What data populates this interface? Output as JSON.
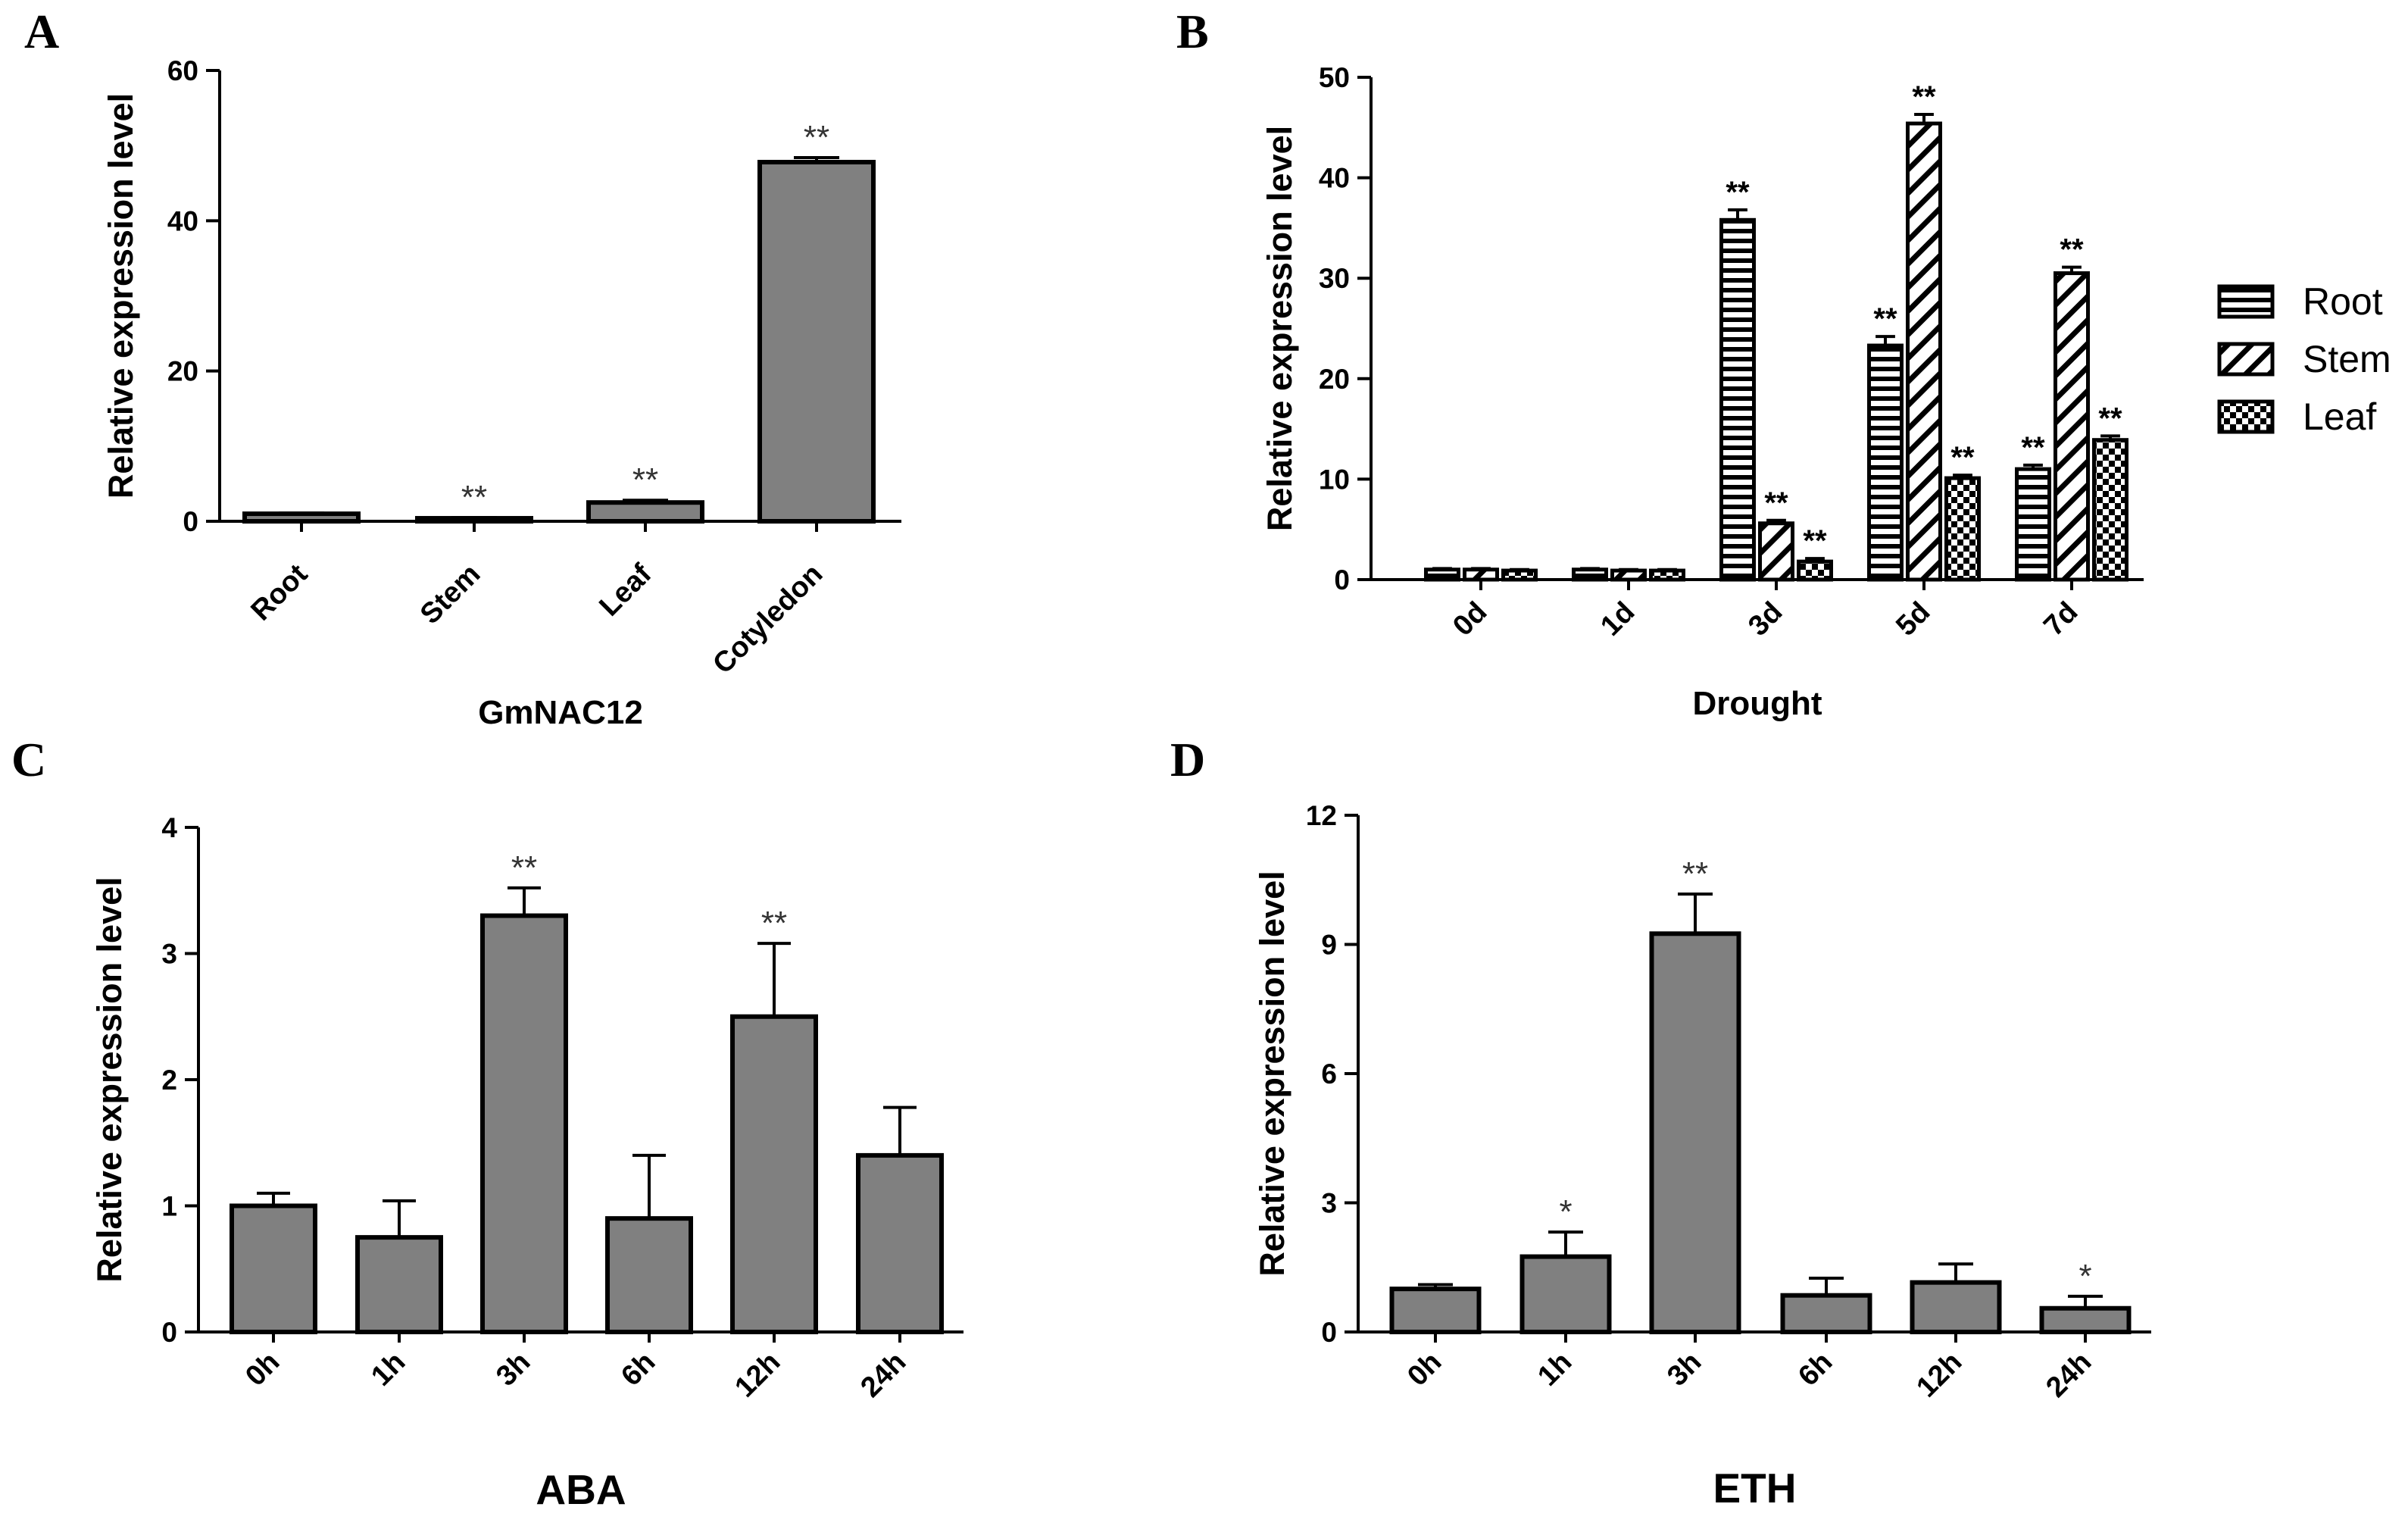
{
  "colors": {
    "bar_fill": "#808080",
    "stroke": "#000000",
    "sig_text": "#333333"
  },
  "chart_data": [
    {
      "id": "A",
      "panel_letter": "A",
      "type": "bar",
      "title": "",
      "categories": [
        "Root",
        "Stem",
        "Leaf",
        "Cotyledon"
      ],
      "values": [
        1.0,
        0.4,
        2.5,
        47.8
      ],
      "errors": [
        0.1,
        0.1,
        0.3,
        0.6
      ],
      "significance": [
        "",
        "**",
        "**",
        "**"
      ],
      "xlabel": "GmNAC12",
      "ylabel": "Relative expression level",
      "ylim": [
        0,
        60
      ],
      "yticks": [
        0,
        20,
        40,
        60
      ],
      "fill": "solid"
    },
    {
      "id": "B",
      "panel_letter": "B",
      "type": "bar",
      "title": "",
      "categories": [
        "0d",
        "1d",
        "3d",
        "5d",
        "7d"
      ],
      "series": [
        {
          "name": "Root",
          "pattern": "horizontal",
          "values": [
            1.0,
            1.0,
            35.8,
            23.3,
            11.0
          ],
          "errors": [
            0.1,
            0.1,
            1.0,
            0.9,
            0.4
          ],
          "significance": [
            "",
            "",
            "**",
            "**",
            "**"
          ]
        },
        {
          "name": "Stem",
          "pattern": "diagonal",
          "values": [
            1.0,
            0.9,
            5.6,
            45.4,
            30.5
          ],
          "errors": [
            0.1,
            0.1,
            0.3,
            0.9,
            0.6
          ],
          "significance": [
            "",
            "",
            "**",
            "**",
            "**"
          ]
        },
        {
          "name": "Leaf",
          "pattern": "checker",
          "values": [
            0.9,
            0.9,
            1.8,
            10.1,
            13.9
          ],
          "errors": [
            0.1,
            0.1,
            0.3,
            0.3,
            0.4
          ],
          "significance": [
            "",
            "",
            "**",
            "**",
            "**"
          ]
        }
      ],
      "legend": [
        "Root",
        "Stem",
        "Leaf"
      ],
      "legend_position": "right",
      "xlabel": "Drought",
      "ylabel": "Relative expression level",
      "ylim": [
        0,
        50
      ],
      "yticks": [
        0,
        10,
        20,
        30,
        40,
        50
      ]
    },
    {
      "id": "C",
      "panel_letter": "C",
      "type": "bar",
      "title": "",
      "categories": [
        "0h",
        "1h",
        "3h",
        "6h",
        "12h",
        "24h"
      ],
      "values": [
        1.0,
        0.75,
        3.3,
        0.9,
        2.5,
        1.4
      ],
      "errors": [
        0.1,
        0.29,
        0.22,
        0.5,
        0.58,
        0.38
      ],
      "significance": [
        "",
        "",
        "**",
        "",
        "**",
        ""
      ],
      "xlabel": "ABA",
      "ylabel": "Relative expression level",
      "ylim": [
        0,
        4
      ],
      "yticks": [
        0,
        1,
        2,
        3,
        4
      ],
      "fill": "solid"
    },
    {
      "id": "D",
      "panel_letter": "D",
      "type": "bar",
      "title": "",
      "categories": [
        "0h",
        "1h",
        "3h",
        "6h",
        "12h",
        "24h"
      ],
      "values": [
        1.0,
        1.75,
        9.25,
        0.85,
        1.15,
        0.55
      ],
      "errors": [
        0.1,
        0.57,
        0.92,
        0.4,
        0.43,
        0.28
      ],
      "significance": [
        "",
        "*",
        "**",
        "",
        "",
        "*"
      ],
      "xlabel": "ETH",
      "ylabel": "Relative expression level",
      "ylim": [
        0,
        12
      ],
      "yticks": [
        0,
        3,
        6,
        9,
        12
      ],
      "fill": "solid"
    }
  ]
}
